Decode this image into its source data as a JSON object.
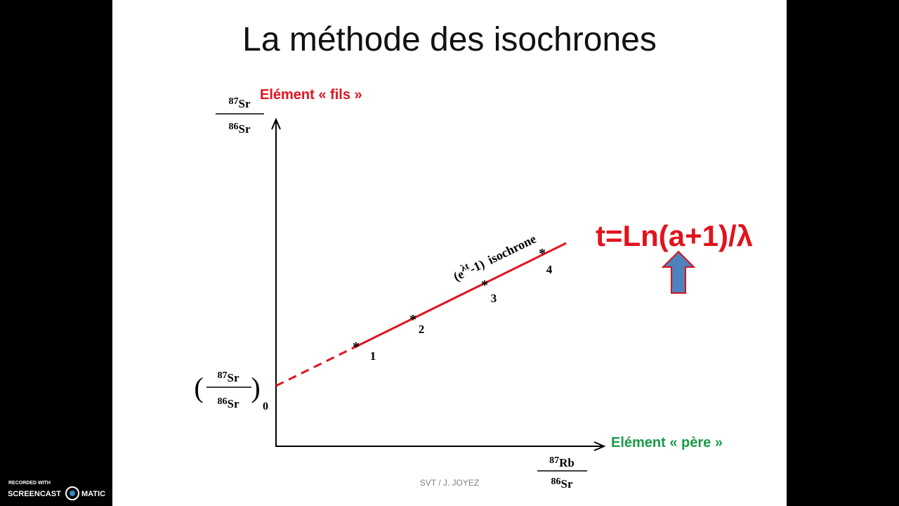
{
  "slide": {
    "title": "La méthode des isochrones",
    "y_axis": {
      "caption": "Elément « fils »",
      "numerator": {
        "mass": "87",
        "element": "Sr"
      },
      "denominator": {
        "mass": "86",
        "element": "Sr"
      }
    },
    "x_axis": {
      "caption": "Elément « père »",
      "numerator": {
        "mass": "87",
        "element": "Rb"
      },
      "denominator": {
        "mass": "86",
        "element": "Sr"
      }
    },
    "intercept": {
      "open": "(",
      "close": ")",
      "subscript": "0",
      "numerator": {
        "mass": "87",
        "element": "Sr"
      },
      "denominator": {
        "mass": "86",
        "element": "Sr"
      }
    },
    "line_label": {
      "open": "(e",
      "exponent": "λt",
      "close": "-1)",
      "word": "isochrone"
    },
    "points": [
      "1",
      "2",
      "3",
      "4"
    ],
    "formula": "t=Ln(a+1)/λ",
    "footer": "SVT / J. JOYEZ"
  },
  "recorder": {
    "caption": "RECORDED WITH",
    "brand_left": "SCREENCAST",
    "brand_right": "MATIC"
  }
}
